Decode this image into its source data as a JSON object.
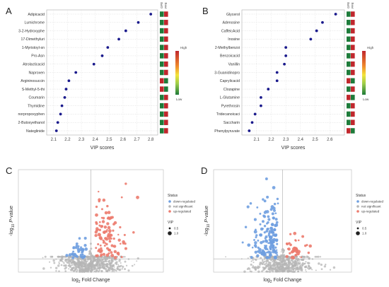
{
  "chart_data": [
    {
      "panel": "A",
      "type": "scatter",
      "orientation": "horizontal",
      "categories": [
        "Adipicacid",
        "Lumichrome",
        "3-2-Hydroxyphe",
        "17-Dimethyluri",
        "1-Myristoyl-sn",
        "Pro-Asn",
        "Atrolacticacid",
        "Naproxen",
        "Argininosuccin",
        "S-Methyl-5-thi",
        "Coumarin",
        "Thymidine",
        "norpropoxyphen",
        "2-Butoxyethanol",
        "Nateglinide"
      ],
      "values": [
        2.8,
        2.71,
        2.62,
        2.57,
        2.49,
        2.45,
        2.39,
        2.26,
        2.21,
        2.19,
        2.18,
        2.16,
        2.15,
        2.13,
        2.12
      ],
      "xlabel": "VIP scores",
      "xlim": [
        2.05,
        2.85
      ],
      "xticks": [
        "2.1",
        "2.2",
        "2.3",
        "2.4",
        "2.5",
        "2.6",
        "2.7",
        "2.8"
      ],
      "heatmap_columns": [
        "GFE",
        "PFE"
      ],
      "heatmap": [
        [
          "green",
          "red"
        ],
        [
          "green",
          "red"
        ],
        [
          "green",
          "red"
        ],
        [
          "green",
          "red"
        ],
        [
          "green",
          "red"
        ],
        [
          "green",
          "red"
        ],
        [
          "green",
          "red"
        ],
        [
          "green",
          "red"
        ],
        [
          "red",
          "green"
        ],
        [
          "red",
          "green"
        ],
        [
          "green",
          "red"
        ],
        [
          "green",
          "red"
        ],
        [
          "green",
          "red"
        ],
        [
          "green",
          "red"
        ],
        [
          "green",
          "red"
        ]
      ],
      "colorbar": {
        "high": "High",
        "low": "Low"
      }
    },
    {
      "panel": "B",
      "type": "scatter",
      "orientation": "horizontal",
      "categories": [
        "Glycerol",
        "Adenosine",
        "CaffeicAcid",
        "Inosine",
        "2-Methylbenzoi",
        "Benzoicacid",
        "Vanillin",
        "3-Guanidinopro",
        "Caprylicacid",
        "Clozapine",
        "L-Glutamine",
        "Pyrethrosin",
        "Tridecanoicaci",
        "Saccharin",
        "Phenylpyruvate"
      ],
      "values": [
        2.64,
        2.55,
        2.51,
        2.47,
        2.3,
        2.3,
        2.29,
        2.24,
        2.24,
        2.18,
        2.13,
        2.13,
        2.09,
        2.07,
        2.05
      ],
      "xlabel": "VIP scores",
      "xlim": [
        2.0,
        2.7
      ],
      "xticks": [
        "2.1",
        "2.2",
        "2.3",
        "2.4",
        "2.5",
        "2.6"
      ],
      "heatmap_columns": [
        "GFE",
        "PFE"
      ],
      "heatmap": [
        [
          "green",
          "red"
        ],
        [
          "green",
          "red"
        ],
        [
          "green",
          "red"
        ],
        [
          "green",
          "red"
        ],
        [
          "green",
          "red"
        ],
        [
          "green",
          "red"
        ],
        [
          "green",
          "red"
        ],
        [
          "green",
          "red"
        ],
        [
          "red",
          "green"
        ],
        [
          "green",
          "red"
        ],
        [
          "red",
          "green"
        ],
        [
          "green",
          "red"
        ],
        [
          "green",
          "red"
        ],
        [
          "green",
          "red"
        ],
        [
          "red",
          "green"
        ]
      ],
      "colorbar": {
        "high": "High",
        "low": "Low"
      }
    },
    {
      "panel": "C",
      "type": "scatter",
      "kind": "volcano",
      "xlabel": "log2 Fold Change",
      "ylabel": "-log10 P-value",
      "xlim": [
        -6,
        6
      ],
      "ylim": [
        0,
        10
      ],
      "pvalue_threshold_y": 1.3,
      "fc_threshold_x": 0,
      "legend": {
        "status_title": "Status",
        "status": [
          {
            "label": "down-regulated",
            "color": "#6f9fe0"
          },
          {
            "label": "not significant",
            "color": "#b5b5b5"
          },
          {
            "label": "up-regulated",
            "color": "#ec7b6e"
          }
        ],
        "vip_title": "VIP",
        "vip": [
          "0.5",
          "1.0"
        ]
      },
      "counts": {
        "down": 40,
        "ns": 700,
        "up": 110
      }
    },
    {
      "panel": "D",
      "type": "scatter",
      "kind": "volcano",
      "xlabel": "log2 Fold Change",
      "ylabel": "-log10 P-value",
      "xlim": [
        -6,
        6
      ],
      "ylim": [
        0,
        10
      ],
      "pvalue_threshold_y": 1.3,
      "fc_threshold_x": 0,
      "legend": {
        "status_title": "Status",
        "status": [
          {
            "label": "down-regulated",
            "color": "#6f9fe0"
          },
          {
            "label": "not significant",
            "color": "#b5b5b5"
          },
          {
            "label": "up-regulated",
            "color": "#ec7b6e"
          }
        ],
        "vip_title": "VIP",
        "vip": [
          "0.5",
          "1.0"
        ]
      },
      "counts": {
        "down": 160,
        "ns": 600,
        "up": 40
      }
    }
  ],
  "colors": {
    "dot": "#1a1a8c",
    "heat_red": "#c0272d",
    "heat_green": "#1e7b3a",
    "up": "#ec7b6e",
    "down": "#6f9fe0",
    "ns": "#b5b5b5"
  }
}
